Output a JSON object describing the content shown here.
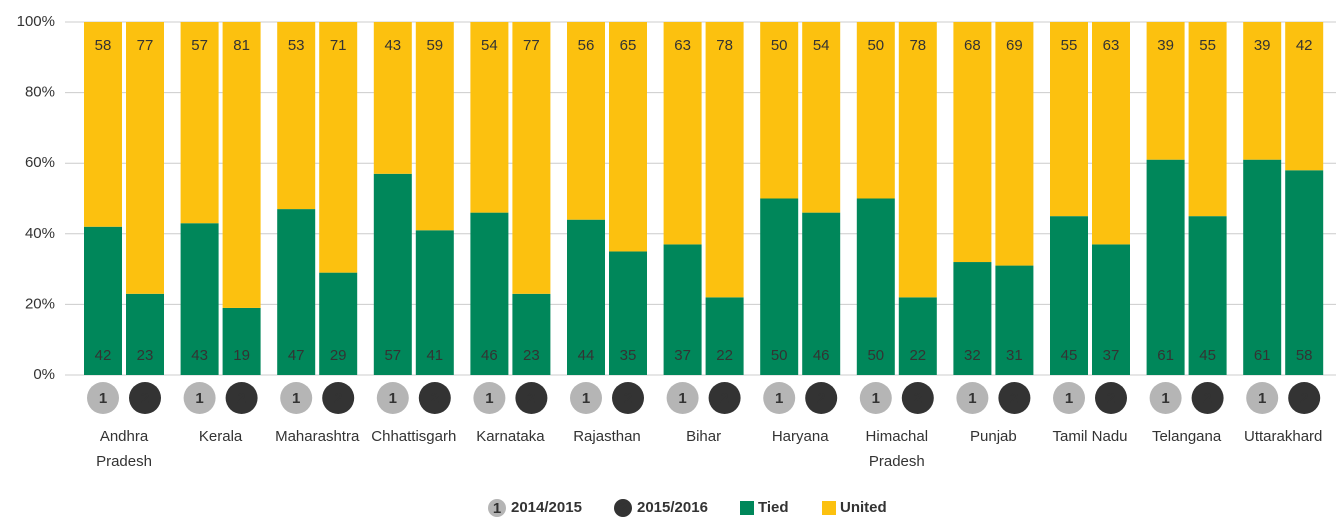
{
  "chart_data": {
    "type": "grouped_stacked_bar",
    "categories": [
      [
        "Andhra",
        "Pradesh"
      ],
      [
        "Kerala"
      ],
      [
        "Maharashtra"
      ],
      [
        "Chhattisgarh"
      ],
      [
        "Karnataka"
      ],
      [
        "Rajasthan"
      ],
      [
        "Bihar"
      ],
      [
        "Haryana"
      ],
      [
        "Himachal",
        "Pradesh"
      ],
      [
        "Punjab"
      ],
      [
        "Tamil Nadu"
      ],
      [
        "Telangana"
      ],
      [
        "Uttarakhard"
      ]
    ],
    "periods": [
      {
        "marker": "1",
        "name": "2014/2015",
        "color": "#b5b5b5"
      },
      {
        "marker": "2",
        "name": "2015/2016",
        "color": "#333333"
      }
    ],
    "series": [
      {
        "name": "Tied",
        "color": "#00875a",
        "values": [
          [
            42,
            23
          ],
          [
            43,
            19
          ],
          [
            47,
            29
          ],
          [
            57,
            41
          ],
          [
            46,
            23
          ],
          [
            44,
            35
          ],
          [
            37,
            22
          ],
          [
            50,
            46
          ],
          [
            50,
            22
          ],
          [
            32,
            31
          ],
          [
            45,
            37
          ],
          [
            61,
            45
          ],
          [
            61,
            58
          ]
        ]
      },
      {
        "name": "United",
        "color": "#fcc10f",
        "values": [
          [
            58,
            77
          ],
          [
            57,
            81
          ],
          [
            53,
            71
          ],
          [
            43,
            59
          ],
          [
            54,
            77
          ],
          [
            56,
            65
          ],
          [
            63,
            78
          ],
          [
            50,
            54
          ],
          [
            50,
            78
          ],
          [
            68,
            69
          ],
          [
            55,
            63
          ],
          [
            39,
            55
          ],
          [
            39,
            42
          ]
        ]
      }
    ],
    "ylim": [
      0,
      100
    ],
    "yticks": [
      {
        "value": 0,
        "label": "0%"
      },
      {
        "value": 20,
        "label": "20%"
      },
      {
        "value": 40,
        "label": "40%"
      },
      {
        "value": 60,
        "label": "60%"
      },
      {
        "value": 80,
        "label": "80%"
      },
      {
        "value": 100,
        "label": "100%"
      }
    ],
    "grid": true
  }
}
